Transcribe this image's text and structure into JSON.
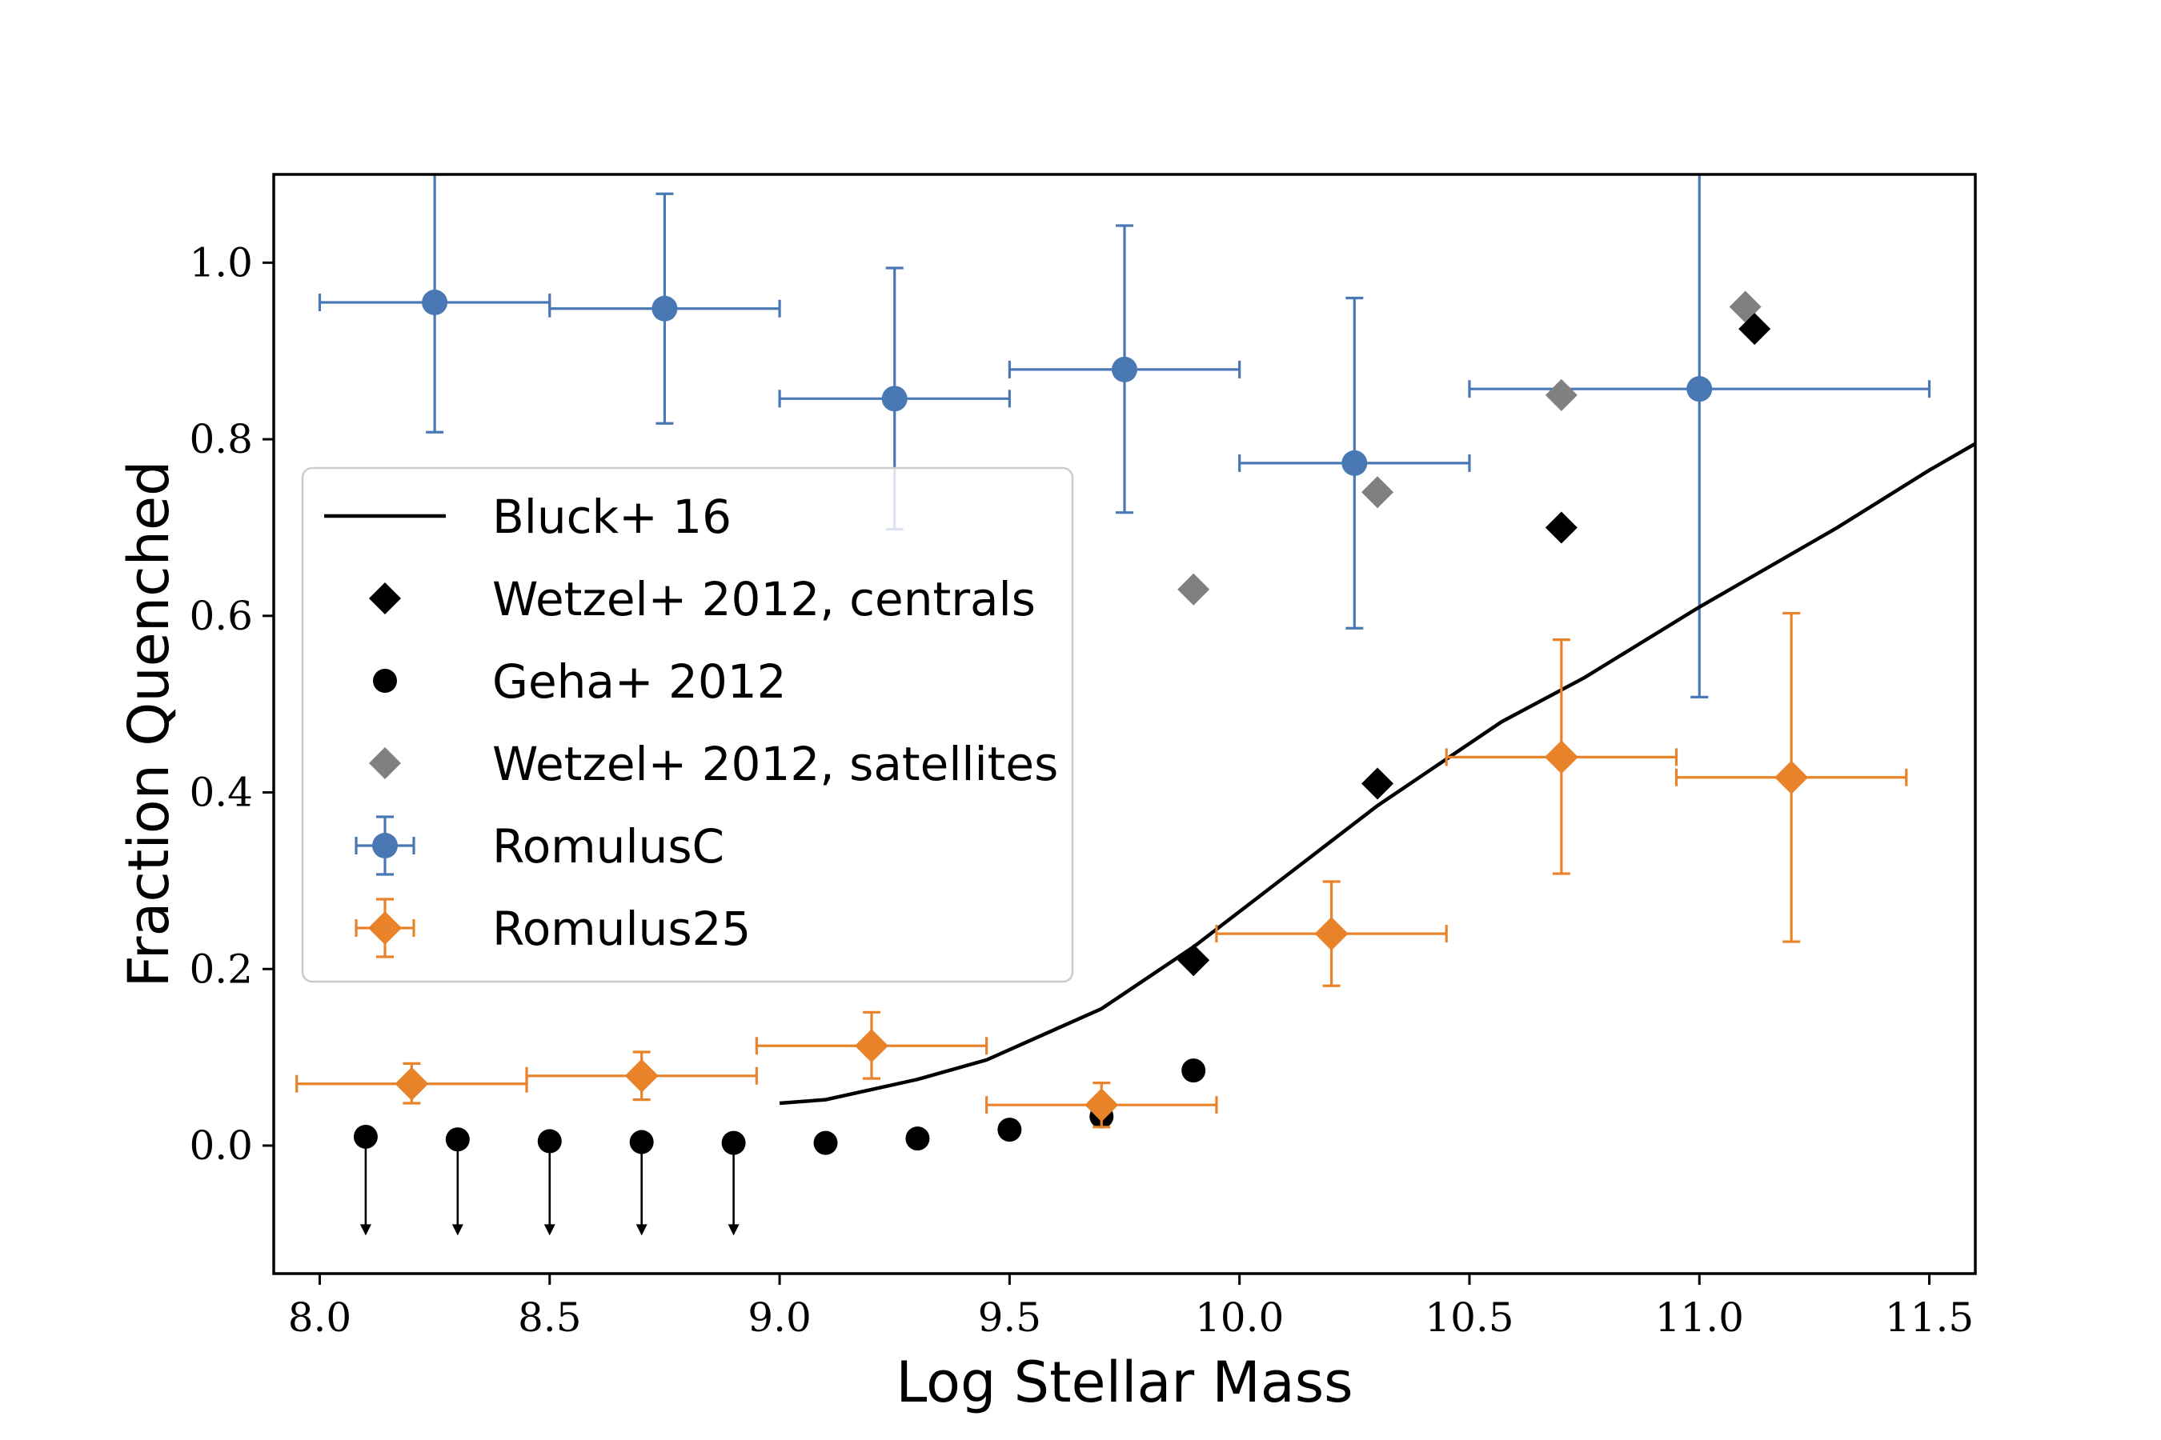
{
  "chart_data": {
    "type": "scatter",
    "xlabel": "Log Stellar Mass",
    "ylabel": "Fraction Quenched",
    "xlim": [
      7.9,
      11.6
    ],
    "ylim": [
      -0.145,
      1.1
    ],
    "x_ticks": [
      "8.0",
      "8.5",
      "9.0",
      "9.5",
      "10.0",
      "10.5",
      "11.0",
      "11.5"
    ],
    "y_ticks": [
      "0.0",
      "0.2",
      "0.4",
      "0.6",
      "0.8",
      "1.0"
    ],
    "legend_position": "center-left",
    "colors": {
      "bluck": "#000000",
      "wetzel_centrals": "#000000",
      "geha": "#000000",
      "wetzel_satellites": "#808080",
      "romulusc": "#4a78b4",
      "romulus25": "#e8832a"
    },
    "series": [
      {
        "name": "Bluck+ 16",
        "kind": "line",
        "points": [
          [
            9.0,
            0.048
          ],
          [
            9.1,
            0.052
          ],
          [
            9.3,
            0.075
          ],
          [
            9.45,
            0.097
          ],
          [
            9.7,
            0.155
          ],
          [
            9.9,
            0.225
          ],
          [
            10.1,
            0.305
          ],
          [
            10.3,
            0.385
          ],
          [
            10.57,
            0.48
          ],
          [
            10.75,
            0.53
          ],
          [
            11.0,
            0.61
          ],
          [
            11.3,
            0.7
          ],
          [
            11.5,
            0.765
          ],
          [
            11.6,
            0.795
          ]
        ]
      },
      {
        "name": "Wetzel+ 2012, centrals",
        "kind": "diamond",
        "points": [
          [
            9.9,
            0.21
          ],
          [
            10.3,
            0.41
          ],
          [
            10.7,
            0.7
          ],
          [
            11.12,
            0.925
          ]
        ]
      },
      {
        "name": "Geha+ 2012",
        "kind": "circle",
        "points": [
          [
            8.1,
            0.01
          ],
          [
            8.3,
            0.007
          ],
          [
            8.5,
            0.005
          ],
          [
            8.7,
            0.004
          ],
          [
            8.9,
            0.003
          ],
          [
            9.1,
            0.003
          ],
          [
            9.3,
            0.008
          ],
          [
            9.5,
            0.018
          ],
          [
            9.7,
            0.033
          ],
          [
            9.9,
            0.085
          ]
        ],
        "upper_limit_arrows_to": -0.1,
        "upper_limit_x": [
          8.1,
          8.3,
          8.5,
          8.7,
          8.9
        ]
      },
      {
        "name": "Wetzel+ 2012, satellites",
        "kind": "diamond",
        "points": [
          [
            9.9,
            0.63
          ],
          [
            10.3,
            0.74
          ],
          [
            10.7,
            0.85
          ],
          [
            11.1,
            0.95
          ]
        ]
      },
      {
        "name": "RomulusC",
        "kind": "errorbar-circle",
        "points": [
          {
            "x": 8.25,
            "y": 0.955,
            "xerr": 0.25,
            "ylo": 0.808,
            "yhi": 1.1
          },
          {
            "x": 8.75,
            "y": 0.948,
            "xerr": 0.25,
            "ylo": 0.818,
            "yhi": 1.078
          },
          {
            "x": 9.25,
            "y": 0.846,
            "xerr": 0.25,
            "ylo": 0.698,
            "yhi": 0.994
          },
          {
            "x": 9.75,
            "y": 0.879,
            "xerr": 0.25,
            "ylo": 0.717,
            "yhi": 1.042
          },
          {
            "x": 10.25,
            "y": 0.773,
            "xerr": 0.25,
            "ylo": 0.586,
            "yhi": 0.96
          },
          {
            "x": 11.0,
            "y": 0.857,
            "xerr": 0.5,
            "ylo": 0.508,
            "yhi": 1.1
          }
        ]
      },
      {
        "name": "Romulus25",
        "kind": "errorbar-diamond",
        "points": [
          {
            "x": 8.2,
            "y": 0.07,
            "xerr": 0.25,
            "ylo": 0.048,
            "yhi": 0.093
          },
          {
            "x": 8.7,
            "y": 0.079,
            "xerr": 0.25,
            "ylo": 0.052,
            "yhi": 0.106
          },
          {
            "x": 9.2,
            "y": 0.113,
            "xerr": 0.25,
            "ylo": 0.076,
            "yhi": 0.151
          },
          {
            "x": 9.7,
            "y": 0.046,
            "xerr": 0.25,
            "ylo": 0.021,
            "yhi": 0.071
          },
          {
            "x": 10.2,
            "y": 0.24,
            "xerr": 0.25,
            "ylo": 0.181,
            "yhi": 0.299
          },
          {
            "x": 10.7,
            "y": 0.44,
            "xerr": 0.25,
            "ylo": 0.308,
            "yhi": 0.573
          },
          {
            "x": 11.2,
            "y": 0.417,
            "xerr": 0.25,
            "ylo": 0.231,
            "yhi": 0.603
          }
        ]
      }
    ]
  }
}
